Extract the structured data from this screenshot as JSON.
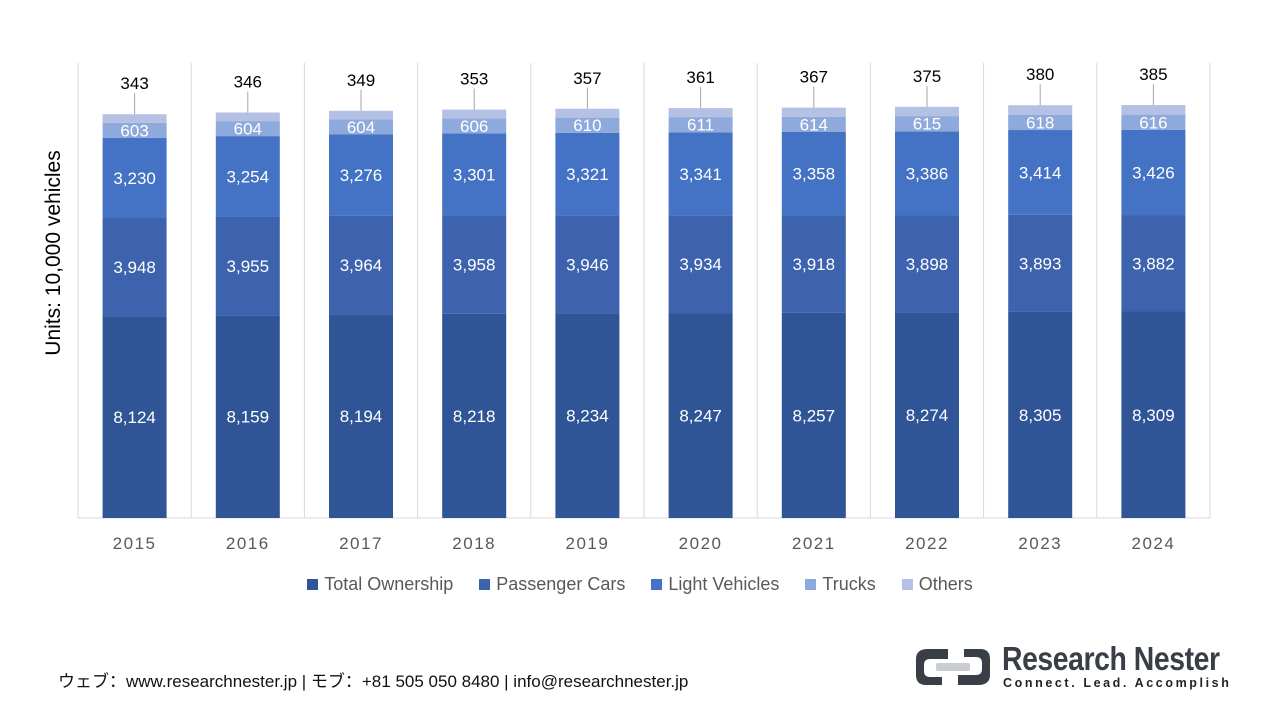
{
  "chart_data": {
    "type": "bar",
    "stacked": true,
    "ylabel": "Units: 10,000 vehicles",
    "xlabel": "",
    "categories": [
      "2015",
      "2016",
      "2017",
      "2018",
      "2019",
      "2020",
      "2021",
      "2022",
      "2023",
      "2024"
    ],
    "series": [
      {
        "name": "Total Ownership",
        "color": "#2f5597",
        "values": [
          8124,
          8159,
          8194,
          8218,
          8234,
          8247,
          8257,
          8274,
          8305,
          8309
        ]
      },
      {
        "name": "Passenger Cars",
        "color": "#3d62ae",
        "values": [
          3948,
          3955,
          3964,
          3958,
          3946,
          3934,
          3918,
          3898,
          3893,
          3882
        ]
      },
      {
        "name": "Light Vehicles",
        "color": "#4472c4",
        "values": [
          3230,
          3254,
          3276,
          3301,
          3321,
          3341,
          3358,
          3386,
          3414,
          3426
        ]
      },
      {
        "name": "Trucks",
        "color": "#8ea9db",
        "values": [
          603,
          604,
          604,
          606,
          610,
          611,
          614,
          615,
          618,
          616
        ]
      },
      {
        "name": "Others",
        "color": "#b4c0e4",
        "values": [
          343,
          346,
          349,
          353,
          357,
          361,
          367,
          375,
          380,
          385
        ]
      }
    ],
    "ylim": [
      0,
      20000
    ],
    "grid": false,
    "legend_position": "bottom"
  },
  "footer": {
    "contact": "ウェブ：www.researchnester.jp | モブ：+81 505 050 8480 | info@researchnester.jp"
  },
  "brand": {
    "name": "Research Nester",
    "tagline": "Connect. Lead. Accomplish"
  }
}
